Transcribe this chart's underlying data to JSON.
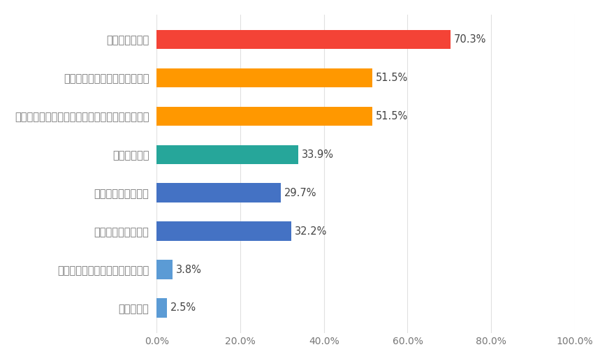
{
  "categories": [
    "教育、学びの場",
    "自分の意見を発表するチャンス",
    "同じような思いを持った同世代の人とのつながり",
    "金錠的な援助",
    "先駆者とのつながり",
    "安定した仕事・雇用",
    "その他（どれも当てはまらない）",
    "わからない"
  ],
  "values": [
    70.3,
    51.5,
    51.5,
    33.9,
    29.7,
    32.2,
    3.8,
    2.5
  ],
  "colors": [
    "#F44336",
    "#FF9800",
    "#FF9800",
    "#26A69A",
    "#4472C4",
    "#4472C4",
    "#5B9BD5",
    "#5B9BD5"
  ],
  "bar_height": 0.5,
  "xlim": [
    0,
    100
  ],
  "xticks": [
    0,
    20,
    40,
    60,
    80,
    100
  ],
  "xtick_labels": [
    "0.0%",
    "20.0%",
    "40.0%",
    "60.0%",
    "80.0%",
    "100.0%"
  ],
  "background_color": "#FFFFFF",
  "label_color": "#777777",
  "value_label_color": "#444444",
  "grid_color": "#E0E0E0",
  "label_fontsize": 10.5,
  "value_fontsize": 10.5,
  "tick_fontsize": 10.0,
  "fig_width": 8.7,
  "fig_height": 5.17,
  "dpi": 100
}
